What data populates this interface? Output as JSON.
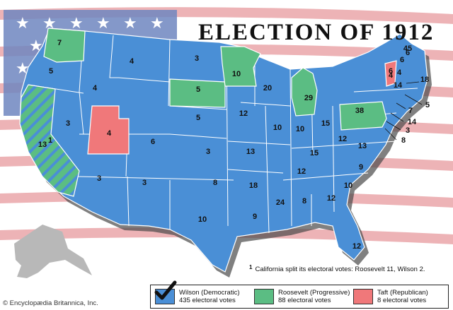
{
  "title": "ELECTION OF 1912",
  "colors": {
    "wilson": "#4a8fd6",
    "roosevelt": "#5bbd83",
    "taft": "#f0787a",
    "flag_red": "#e8a0a4",
    "flag_blue": "#6e86bf",
    "border": "#ffffff"
  },
  "electoral_labels": [
    "7",
    "5",
    "4",
    "4",
    "3",
    "13",
    "3",
    "4",
    "6",
    "3",
    "3",
    "5",
    "5",
    "3",
    "8",
    "10",
    "10",
    "20",
    "12",
    "13",
    "18",
    "9",
    "10",
    "10",
    "29",
    "15",
    "15",
    "12",
    "13",
    "24",
    "8",
    "12",
    "12",
    "9",
    "10",
    "12",
    "14",
    "6",
    "45",
    "38",
    "4",
    "4",
    "6",
    "18",
    "5",
    "7",
    "14",
    "3",
    "8",
    "6"
  ],
  "footnote": {
    "marker": "1",
    "text": "California split its electoral votes: Roosevelt 11, Wilson 2."
  },
  "legend": [
    {
      "name": "Wilson (Democratic)",
      "votes": "435 electoral votes",
      "color": "wilson"
    },
    {
      "name": "Roosevelt (Progressive)",
      "votes": "88 electoral votes",
      "color": "roosevelt"
    },
    {
      "name": "Taft (Republican)",
      "votes": "8 electoral votes",
      "color": "taft"
    }
  ],
  "credit": "© Encyclopædia Britannica, Inc."
}
